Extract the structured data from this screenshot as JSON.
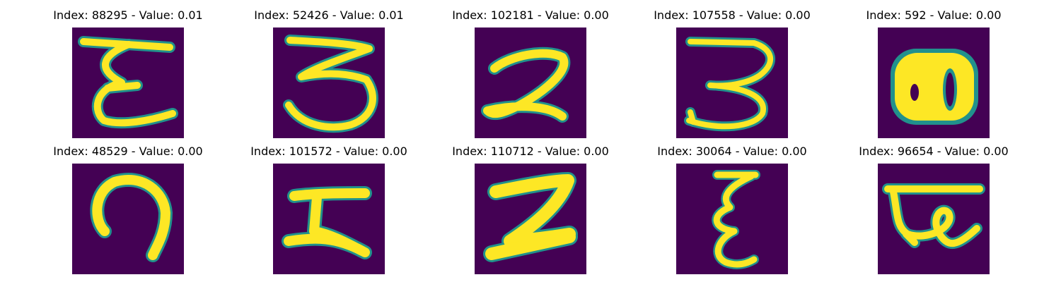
{
  "panels": [
    {
      "title": "Index: 88295 - Value: 0.01",
      "glyph": "epsilon-bar"
    },
    {
      "title": "Index: 52426 - Value: 0.01",
      "glyph": "three-bar"
    },
    {
      "title": "Index: 102181 - Value: 0.00",
      "glyph": "two-loop"
    },
    {
      "title": "Index: 107558 - Value: 0.00",
      "glyph": "three-hook"
    },
    {
      "title": "Index: 592 - Value: 0.00",
      "glyph": "blob-eight"
    },
    {
      "title": "Index: 48529 - Value: 0.00",
      "glyph": "hook-g"
    },
    {
      "title": "Index: 101572 - Value: 0.00",
      "glyph": "h-shape"
    },
    {
      "title": "Index: 110712 - Value: 0.00",
      "glyph": "two-block"
    },
    {
      "title": "Index: 30064 - Value: 0.00",
      "glyph": "epsilon-narrow"
    },
    {
      "title": "Index: 96654 - Value: 0.00",
      "glyph": "bar-loop"
    }
  ],
  "colors": {
    "background": "#440154",
    "stroke": "#fde725",
    "edge": "#21918c"
  }
}
